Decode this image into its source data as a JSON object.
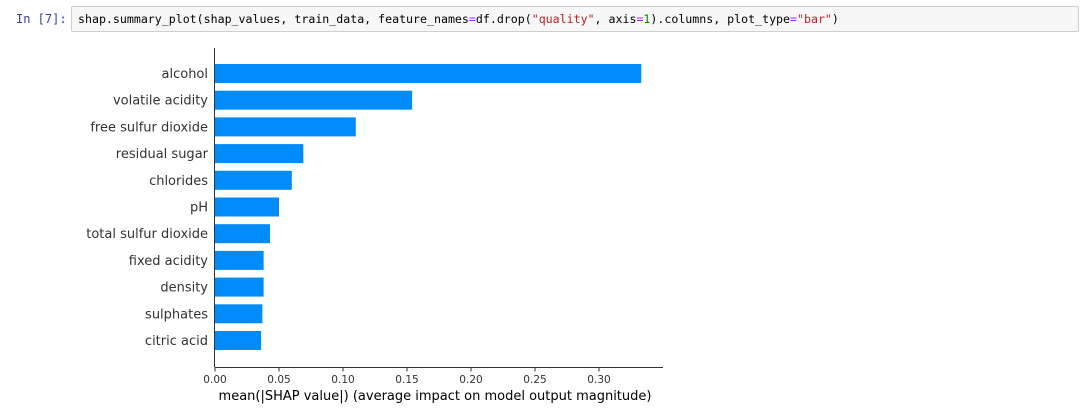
{
  "cell": {
    "prompt": "In [7]:",
    "code_tokens": [
      {
        "text": "shap.summary_plot(shap_values, train_data, feature_names",
        "cls": ""
      },
      {
        "text": "=",
        "cls": "tok-op"
      },
      {
        "text": "df.drop(",
        "cls": ""
      },
      {
        "text": "\"quality\"",
        "cls": "tok-str"
      },
      {
        "text": ", axis",
        "cls": ""
      },
      {
        "text": "=",
        "cls": "tok-op"
      },
      {
        "text": "1",
        "cls": "tok-num"
      },
      {
        "text": ").columns, plot_type",
        "cls": ""
      },
      {
        "text": "=",
        "cls": "tok-op"
      },
      {
        "text": "\"bar\"",
        "cls": "tok-str"
      },
      {
        "text": ")",
        "cls": ""
      }
    ]
  },
  "colors": {
    "bar": "#008bfb",
    "code_string": "#ba2121",
    "code_number": "#008800",
    "code_operator": "#aa22ff"
  },
  "chart_data": {
    "type": "bar",
    "orientation": "horizontal",
    "categories": [
      "alcohol",
      "volatile acidity",
      "free sulfur dioxide",
      "residual sugar",
      "chlorides",
      "pH",
      "total sulfur dioxide",
      "fixed acidity",
      "density",
      "sulphates",
      "citric acid"
    ],
    "values": [
      0.333,
      0.154,
      0.11,
      0.069,
      0.06,
      0.05,
      0.043,
      0.038,
      0.038,
      0.037,
      0.036
    ],
    "xlabel": "mean(|SHAP value|) (average impact on model output magnitude)",
    "xticks": [
      0.0,
      0.05,
      0.1,
      0.15,
      0.2,
      0.25,
      0.3
    ],
    "xtick_labels": [
      "0.00",
      "0.05",
      "0.10",
      "0.15",
      "0.20",
      "0.25",
      "0.30"
    ],
    "xlim": [
      0,
      0.35
    ],
    "grid": false
  }
}
